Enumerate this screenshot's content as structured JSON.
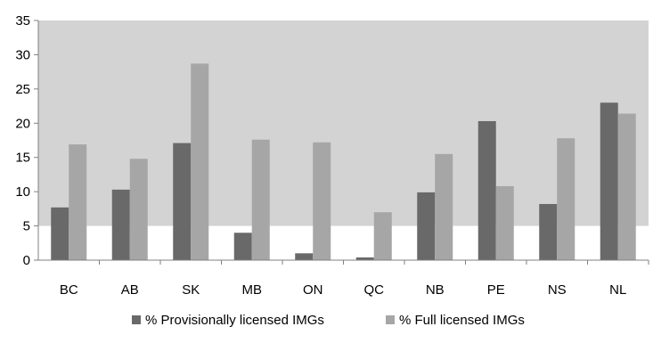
{
  "chart_data": {
    "type": "bar",
    "title": "",
    "xlabel": "",
    "ylabel": "",
    "categories": [
      "BC",
      "AB",
      "SK",
      "MB",
      "ON",
      "QC",
      "NB",
      "PE",
      "NS",
      "NL"
    ],
    "series": [
      {
        "name": "% Provisionally licensed IMGs",
        "color": "#696969",
        "values": [
          7.7,
          10.3,
          17.1,
          4.0,
          1.0,
          0.4,
          9.9,
          20.3,
          8.2,
          23.0
        ]
      },
      {
        "name": "% Full licensed IMGs",
        "color": "#a6a6a6",
        "values": [
          16.9,
          14.8,
          28.7,
          17.6,
          17.2,
          7.0,
          15.5,
          10.8,
          17.8,
          21.4
        ]
      }
    ],
    "ylim": [
      0,
      35
    ],
    "yticks": [
      0,
      5,
      10,
      15,
      20,
      25,
      30,
      35
    ],
    "background_band": {
      "from": 5,
      "to": 35,
      "color": "#d3d3d3"
    },
    "grid": false,
    "legend_position": "bottom"
  }
}
